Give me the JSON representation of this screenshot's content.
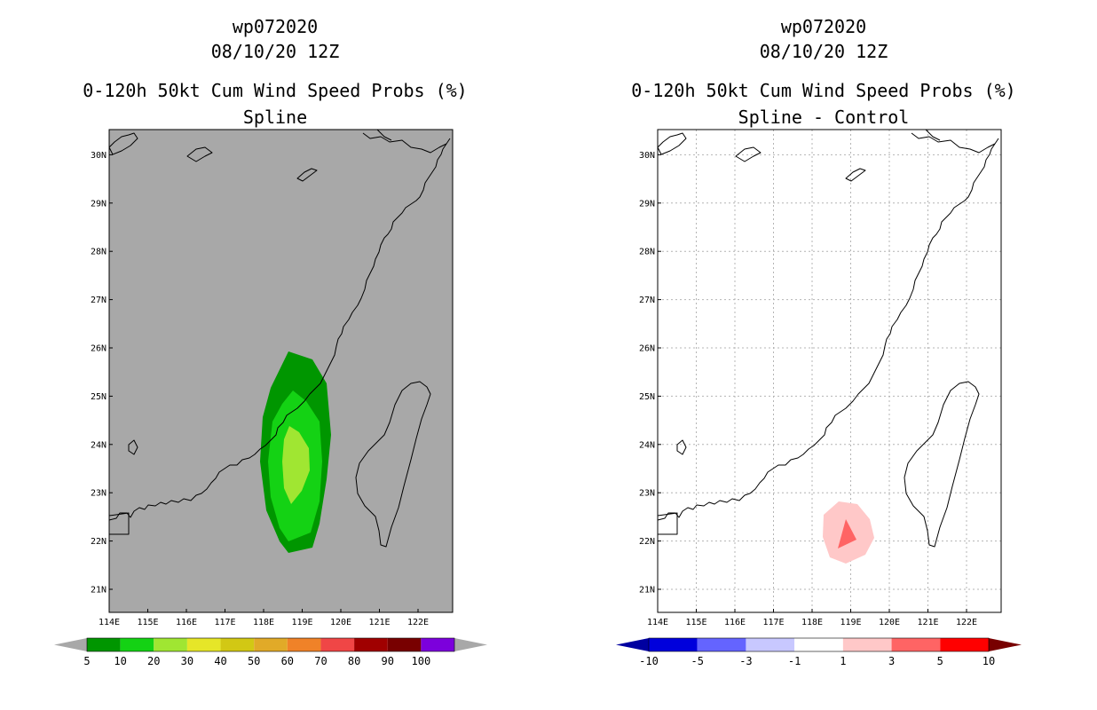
{
  "left": {
    "title": {
      "line1": "wp072020",
      "line2": "08/10/20 12Z",
      "line3": "0-120h 50kt Cum Wind Speed Probs (%)",
      "line4": "Spline"
    },
    "colorbar": {
      "labels": [
        "5",
        "10",
        "20",
        "30",
        "40",
        "50",
        "60",
        "70",
        "80",
        "90",
        "100"
      ],
      "colors": [
        "#009600",
        "#14d214",
        "#a0e632",
        "#e6e628",
        "#d2c814",
        "#e1aa28",
        "#f08228",
        "#f04646",
        "#a00000",
        "#780000",
        "#7c00dc"
      ],
      "end_colors": [
        "#a8a8a8",
        "#a8a8a8"
      ]
    },
    "background": "#a8a8a8"
  },
  "right": {
    "title": {
      "line1": "wp072020",
      "line2": "08/10/20 12Z",
      "line3": "0-120h 50kt Cum Wind Speed Probs (%)",
      "line4": "Spline - Control"
    },
    "colorbar": {
      "labels": [
        "-10",
        "-5",
        "-3",
        "-1",
        "1",
        "3",
        "5",
        "10"
      ],
      "colors": [
        "#0000dc",
        "#6464ff",
        "#c8c8ff",
        "#ffffff",
        "#ffc8c8",
        "#ff6464",
        "#ff0000"
      ],
      "end_colors": [
        "#0000a0",
        "#780000"
      ]
    },
    "background": "#ffffff"
  },
  "axes": {
    "lon_labels": [
      "114E",
      "115E",
      "116E",
      "117E",
      "118E",
      "119E",
      "120E",
      "121E",
      "122E"
    ],
    "lat_labels": [
      "21N",
      "22N",
      "23N",
      "24N",
      "25N",
      "26N",
      "27N",
      "28N",
      "29N",
      "30N"
    ],
    "xlim": [
      114,
      122.5
    ],
    "ylim": [
      20.3,
      30.5
    ]
  },
  "map_data": {
    "left_fill": [
      {
        "level": "5-10",
        "color": "#009600",
        "region": "outer"
      },
      {
        "level": "10-20",
        "color": "#14d214",
        "region": "middle"
      },
      {
        "level": "20-30",
        "color": "#a0e632",
        "region": "inner"
      }
    ],
    "right_fill": [
      {
        "level": "1-3",
        "color": "#ffc8c8",
        "region": "outer"
      },
      {
        "level": "3-5",
        "color": "#ff6464",
        "region": "inner"
      }
    ]
  },
  "colors": {
    "grid": "#b4b4b4",
    "coast": "#000000"
  }
}
